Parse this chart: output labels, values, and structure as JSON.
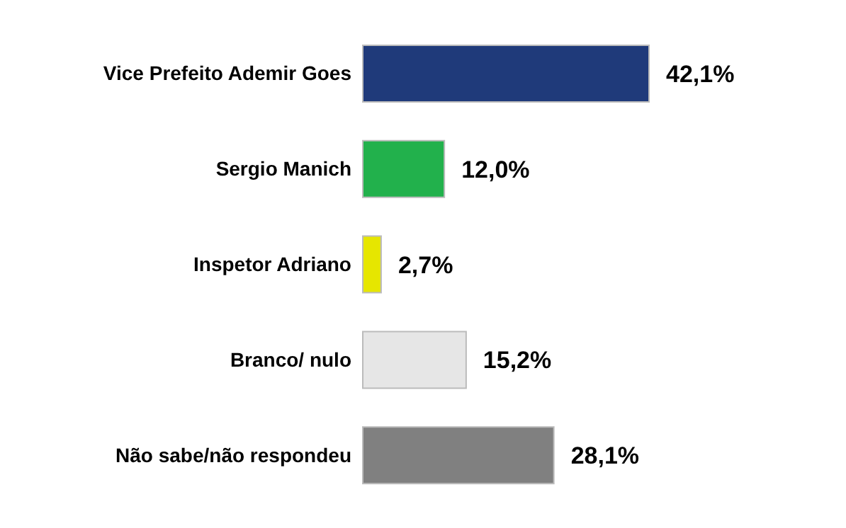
{
  "chart_data": {
    "type": "bar",
    "orientation": "horizontal",
    "categories": [
      "Vice Prefeito Ademir Goes",
      "Sergio Manich",
      "Inspetor Adriano",
      "Branco/ nulo",
      "Não sabe/não respondeu"
    ],
    "values": [
      42.1,
      12.0,
      2.7,
      15.2,
      28.1
    ],
    "colors": [
      "#1f3a7a",
      "#22b14c",
      "#e6e600",
      "#e6e6e6",
      "#808080"
    ],
    "value_labels": [
      "42,1%",
      "12,0%",
      "2,7%",
      "15,2%",
      "28,1%"
    ]
  }
}
